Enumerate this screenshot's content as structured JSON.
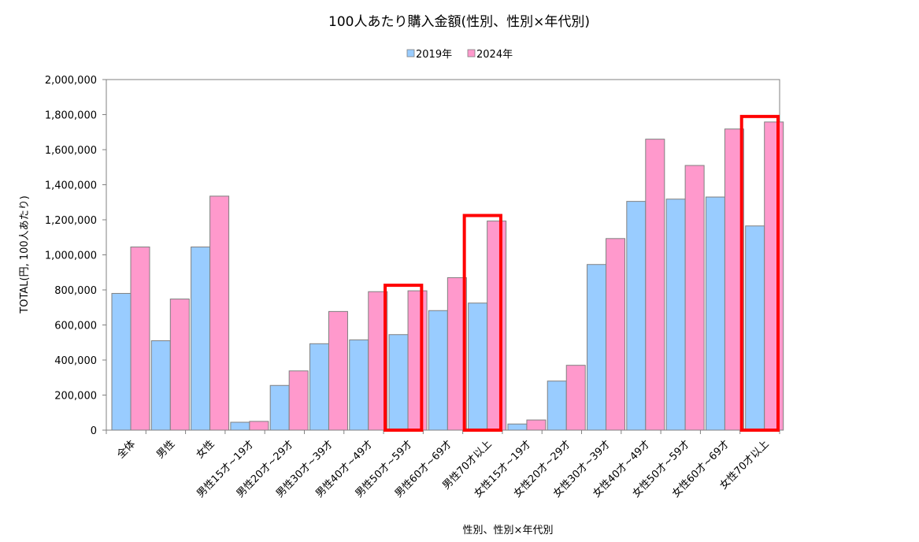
{
  "chart_data": {
    "type": "bar",
    "title": "100人あたり購入金額(性別、性別×年代別)",
    "xlabel": "性別、性別×年代別",
    "ylabel": "TOTAL(円, 100人あたり)",
    "ylim": [
      0,
      2000000
    ],
    "yticks": [
      0,
      200000,
      400000,
      600000,
      800000,
      1000000,
      1200000,
      1400000,
      1600000,
      1800000,
      2000000
    ],
    "ytick_labels": [
      "0",
      "200,000",
      "400,000",
      "600,000",
      "800,000",
      "1,000,000",
      "1,200,000",
      "1,400,000",
      "1,600,000",
      "1,800,000",
      "2,000,000"
    ],
    "legend_position": "top-center",
    "grid": false,
    "categories": [
      "全体",
      "男性",
      "女性",
      "男性15才~19才",
      "男性20才~29才",
      "男性30才~39才",
      "男性40才~49才",
      "男性50才~59才",
      "男性60才~69才",
      "男性70才以上",
      "女性15才~19才",
      "女性20才~29才",
      "女性30才~39才",
      "女性40才~49才",
      "女性50才~59才",
      "女性60才~69才",
      "女性70才以上"
    ],
    "series": [
      {
        "name": "2019年",
        "color": "#99ccff",
        "values": [
          780000,
          510000,
          1045000,
          45000,
          255000,
          493000,
          515000,
          545000,
          682000,
          725000,
          35000,
          280000,
          945000,
          1305000,
          1318000,
          1330000,
          1165000
        ]
      },
      {
        "name": "2024年",
        "color": "#ff99cc",
        "values": [
          1045000,
          748000,
          1335000,
          50000,
          338000,
          677000,
          790000,
          795000,
          870000,
          1193000,
          58000,
          370000,
          1093000,
          1660000,
          1510000,
          1718000,
          1758000
        ]
      }
    ],
    "highlighted_categories": [
      "男性50才~59才",
      "男性70才以上",
      "女性70才以上"
    ],
    "highlight_color": "#ff0000"
  }
}
